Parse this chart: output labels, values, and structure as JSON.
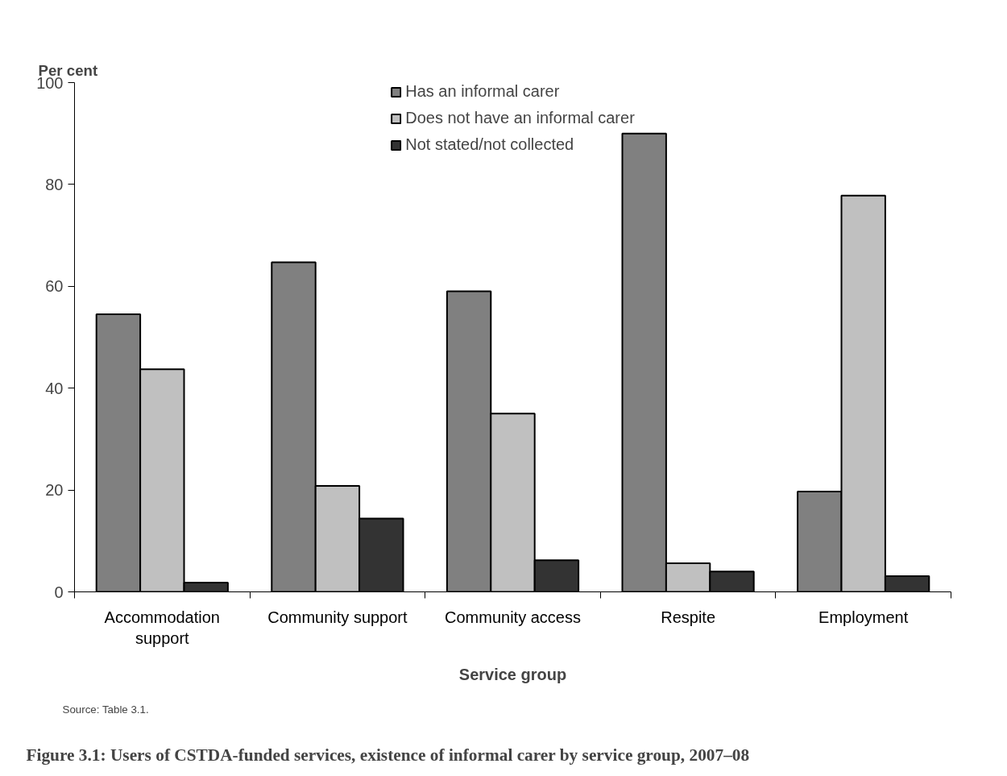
{
  "chart_data": {
    "type": "bar",
    "title": "Figure 3.1: Users of CSTDA-funded services, existence of informal carer by service group, 2007–08",
    "xlabel": "Service group",
    "ylabel": "Per cent",
    "categories": [
      "Accommodation support",
      "Community support",
      "Community access",
      "Respite",
      "Employment"
    ],
    "series": [
      {
        "name": "Has an informal carer",
        "color": "#808080",
        "values": [
          54.5,
          64.7,
          59.0,
          90.0,
          19.7
        ]
      },
      {
        "name": "Does not have an informal carer",
        "color": "#c0c0c0",
        "values": [
          43.7,
          20.8,
          35.0,
          5.6,
          77.8
        ]
      },
      {
        "name": "Not stated/not collected",
        "color": "#333333",
        "values": [
          1.8,
          14.4,
          6.2,
          4.0,
          3.1
        ]
      }
    ],
    "ylim": [
      0,
      100
    ],
    "yticks": [
      0,
      20,
      40,
      60,
      80,
      100
    ],
    "grid": false,
    "legend": "top",
    "annotations": [
      "Source: Table 3.1."
    ]
  }
}
